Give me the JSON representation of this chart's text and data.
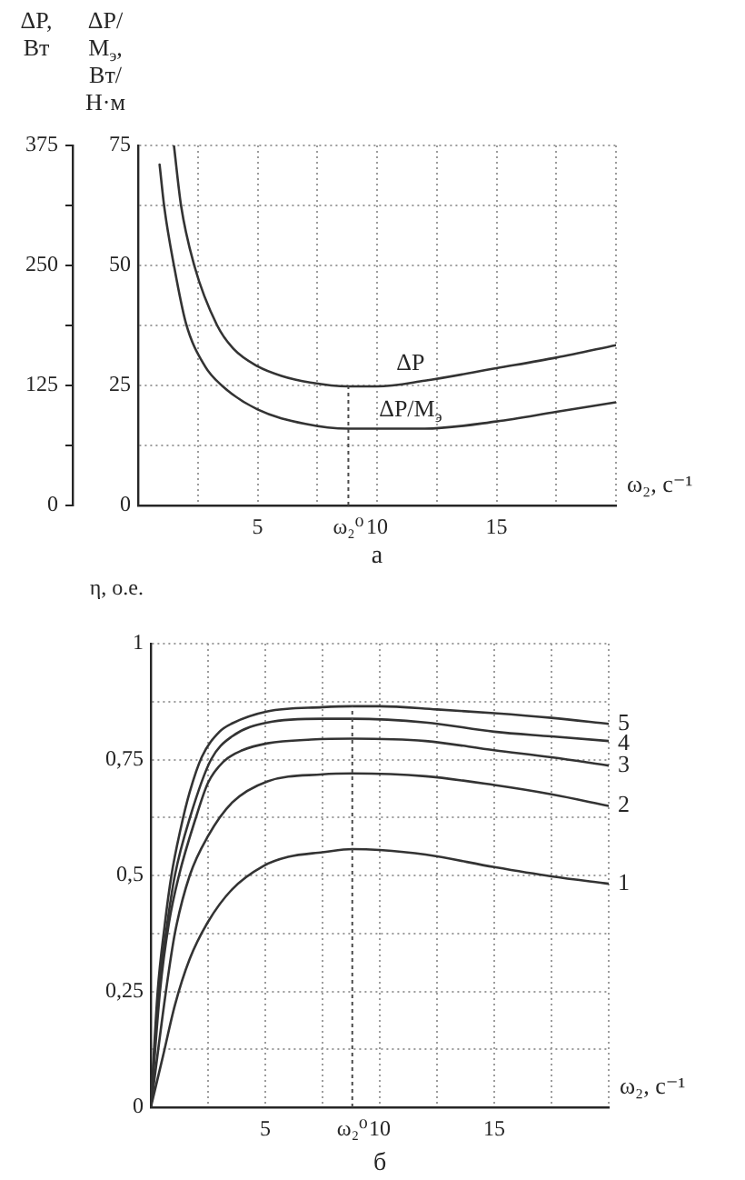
{
  "chart_data": [
    {
      "type": "line",
      "title": "а",
      "xlabel": "ω₂, с⁻¹",
      "ylabel": "ΔP, Вт",
      "y2label": "ΔP/M$_{э}$, Вт/Н·м",
      "xlim": [
        0,
        20
      ],
      "xticks": [
        {
          "value": 0,
          "label": null
        },
        {
          "value": 2.5,
          "label": null
        },
        5,
        {
          "value": 7.5,
          "label": null
        },
        {
          "value": 8.8,
          "label": "ω₂⁰"
        },
        10,
        {
          "value": 12.5,
          "label": null
        },
        15,
        {
          "value": 17.5,
          "label": null
        },
        {
          "value": 20,
          "label": null
        }
      ],
      "ylim": [
        0,
        375
      ],
      "yticks": [
        0,
        {
          "value": 62.5,
          "label": null
        },
        125,
        {
          "value": 187.5,
          "label": null
        },
        250,
        {
          "value": 312.5,
          "label": null
        },
        375
      ],
      "y2lim": [
        0,
        75
      ],
      "y2ticks": [
        0,
        {
          "value": 12.5,
          "label": null
        },
        25,
        {
          "value": 37.5,
          "label": null
        },
        50,
        {
          "value": 62.5,
          "label": null
        },
        75
      ],
      "grid": true,
      "ref_lines": [
        {
          "axis": "x",
          "value": 8.8
        }
      ],
      "series": [
        {
          "name": "ΔP",
          "color": "#333333",
          "x": [
            1.5,
            1.8,
            2.35,
            3.3,
            4,
            5,
            6,
            7.2,
            8.8,
            10,
            12,
            15,
            17.5,
            20
          ],
          "values": [
            375,
            312,
            250,
            188,
            163,
            145,
            135,
            128,
            124,
            124,
            130,
            143,
            154,
            167
          ]
        },
        {
          "name": "ΔP/M$_{э}$",
          "color": "#333333",
          "axis": "y2",
          "x": [
            0.9,
            1.1,
            1.5,
            2,
            2.8,
            3.5,
            5,
            7,
            8.8,
            10,
            12,
            15,
            17.5,
            20
          ],
          "values": [
            71,
            62,
            50,
            38,
            29,
            25,
            20,
            17,
            16,
            16,
            16,
            17.5,
            19.5,
            21.5
          ]
        }
      ]
    },
    {
      "type": "line",
      "title": "б",
      "xlabel": "ω₂, с⁻¹",
      "ylabel": "η, о.е.",
      "xlim": [
        0,
        20
      ],
      "xticks": [
        {
          "value": 0,
          "label": null
        },
        {
          "value": 2.5,
          "label": null
        },
        5,
        {
          "value": 7.5,
          "label": null
        },
        {
          "value": 8.8,
          "label": "ω₂⁰"
        },
        10,
        {
          "value": 12.5,
          "label": null
        },
        15,
        {
          "value": 17.5,
          "label": null
        },
        {
          "value": 20,
          "label": null
        }
      ],
      "ylim": [
        0,
        1
      ],
      "yticks": [
        0,
        {
          "value": 0.125,
          "label": null
        },
        {
          "value": 0.25,
          "label": "0,25"
        },
        {
          "value": 0.375,
          "label": null
        },
        {
          "value": 0.5,
          "label": "0,5"
        },
        {
          "value": 0.625,
          "label": null
        },
        {
          "value": 0.75,
          "label": "0,75"
        },
        {
          "value": 0.875,
          "label": null
        },
        1
      ],
      "grid": true,
      "ref_lines": [
        {
          "axis": "x",
          "value": 8.8
        }
      ],
      "series": [
        {
          "name": "1",
          "color": "#333333",
          "x": [
            0,
            0.53,
            1.05,
            1.7,
            2.5,
            3.55,
            4.9,
            6,
            7.5,
            8.8,
            10,
            12,
            15,
            17.5,
            20
          ],
          "values": [
            0,
            0.11,
            0.22,
            0.32,
            0.4,
            0.47,
            0.52,
            0.54,
            0.55,
            0.557,
            0.555,
            0.545,
            0.518,
            0.498,
            0.482
          ]
        },
        {
          "name": "2",
          "color": "#333333",
          "x": [
            0,
            0.66,
            1.05,
            1.7,
            2.5,
            3.55,
            5.1,
            7.5,
            8.8,
            12,
            15,
            17.5,
            20
          ],
          "values": [
            0,
            0.25,
            0.375,
            0.5,
            0.585,
            0.657,
            0.703,
            0.718,
            0.72,
            0.714,
            0.695,
            0.675,
            0.65
          ]
        },
        {
          "name": "3",
          "color": "#333333",
          "x": [
            0,
            0.4,
            0.8,
            1.23,
            1.97,
            2.5,
            3.16,
            4,
            5.1,
            7,
            8.8,
            12,
            15,
            17.5,
            20
          ],
          "values": [
            0,
            0.25,
            0.4,
            0.5,
            0.625,
            0.7,
            0.745,
            0.77,
            0.785,
            0.793,
            0.795,
            0.79,
            0.77,
            0.755,
            0.737
          ]
        },
        {
          "name": "4",
          "color": "#333333",
          "x": [
            0,
            0.35,
            0.7,
            1.05,
            1.71,
            2.63,
            3.55,
            5.1,
            7.5,
            8.8,
            12,
            15,
            17.5,
            20
          ],
          "values": [
            0,
            0.25,
            0.39,
            0.5,
            0.625,
            0.75,
            0.8,
            0.83,
            0.838,
            0.838,
            0.83,
            0.81,
            0.8,
            0.79
          ]
        },
        {
          "name": "5",
          "color": "#333333",
          "x": [
            0,
            0.3,
            0.6,
            0.9,
            1.3,
            1.7,
            2.23,
            3,
            3.55,
            5.1,
            7.5,
            8.8,
            10,
            12.5,
            15,
            17.5,
            20
          ],
          "values": [
            0,
            0.25,
            0.39,
            0.5,
            0.6,
            0.68,
            0.756,
            0.81,
            0.828,
            0.854,
            0.863,
            0.865,
            0.865,
            0.858,
            0.85,
            0.84,
            0.827
          ]
        }
      ]
    }
  ]
}
